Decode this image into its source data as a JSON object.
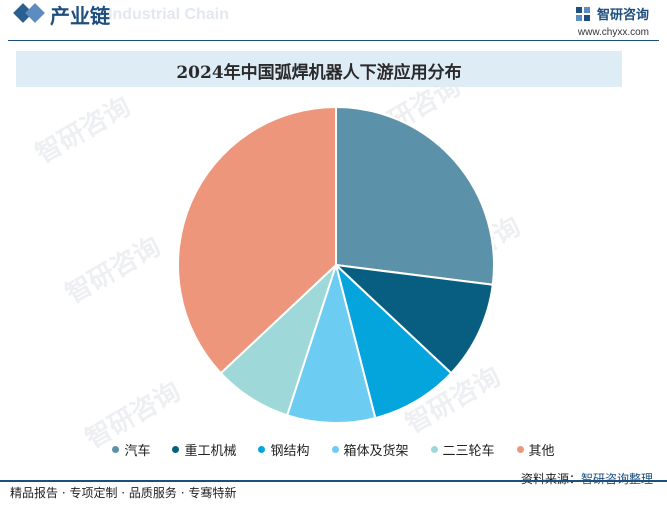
{
  "header": {
    "section_title": "产业链",
    "section_subtitle": "Industrial Chain",
    "brand_name": "智研咨询",
    "website": "www.chyxx.com"
  },
  "chart_data": {
    "type": "pie",
    "title": "2024年中国弧焊机器人下游应用分布",
    "categories": [
      "汽车",
      "重工机械",
      "钢结构",
      "箱体及货架",
      "二三轮车",
      "其他"
    ],
    "values": [
      27,
      10,
      9,
      9,
      8,
      37
    ],
    "colors": [
      "#5c91aa",
      "#085e80",
      "#04a4dc",
      "#6cccf1",
      "#9fd8d8",
      "#ee967b"
    ],
    "legend_position": "bottom"
  },
  "watermark": {
    "text": "智研咨询"
  },
  "source": {
    "label": "资料来源：",
    "value": "智研咨询整理"
  },
  "footer": {
    "tagline": "精品报告 · 专项定制 · 品质服务 · 专骞特新"
  }
}
